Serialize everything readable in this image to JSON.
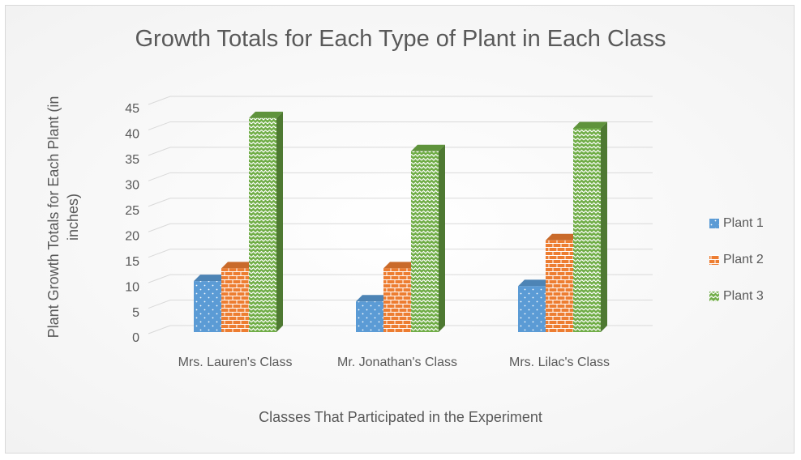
{
  "chart_data": {
    "type": "bar3d",
    "title": "Growth Totals for Each Type of Plant in Each Class",
    "x_label": "Classes That Participated in the Experiment",
    "y_label": "Plant Growth Totals for Each Plant (in inches)",
    "categories": [
      "Mrs. Lauren's Class",
      "Mr. Jonathan's Class",
      "Mrs. Lilac's Class"
    ],
    "series": [
      {
        "name": "Plant 1",
        "color": "#5b9bd5",
        "pattern": "dots",
        "values": [
          10,
          6,
          9
        ]
      },
      {
        "name": "Plant 2",
        "color": "#ed7d31",
        "pattern": "bricks",
        "values": [
          12.5,
          12.5,
          18
        ]
      },
      {
        "name": "Plant 3",
        "color": "#70ad47",
        "pattern": "zigzag",
        "values": [
          42,
          35.5,
          40
        ]
      }
    ],
    "ylim": [
      0,
      45
    ],
    "yticks": [
      0,
      5,
      10,
      15,
      20,
      25,
      30,
      35,
      40,
      45
    ],
    "grid": true,
    "legend": "right"
  }
}
